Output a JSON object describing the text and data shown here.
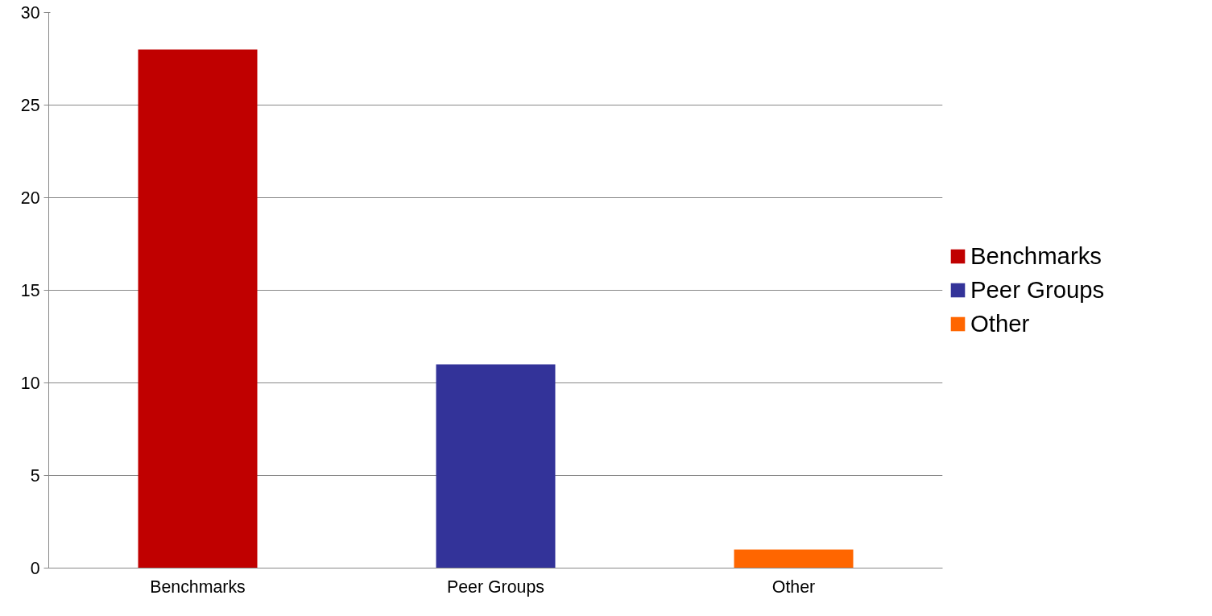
{
  "chart_data": {
    "type": "bar",
    "categories": [
      "Benchmarks",
      "Peer Groups",
      "Other"
    ],
    "series": [
      {
        "name": "Benchmarks",
        "color": "#c00000",
        "values": [
          28,
          null,
          null
        ]
      },
      {
        "name": "Peer Groups",
        "color": "#333399",
        "values": [
          null,
          11,
          null
        ]
      },
      {
        "name": "Other",
        "color": "#ff6600",
        "values": [
          null,
          null,
          1
        ]
      }
    ],
    "ylim": [
      0,
      30
    ],
    "yticks": [
      0,
      5,
      10,
      15,
      20,
      25,
      30
    ],
    "grid": "y",
    "legend": "right"
  }
}
